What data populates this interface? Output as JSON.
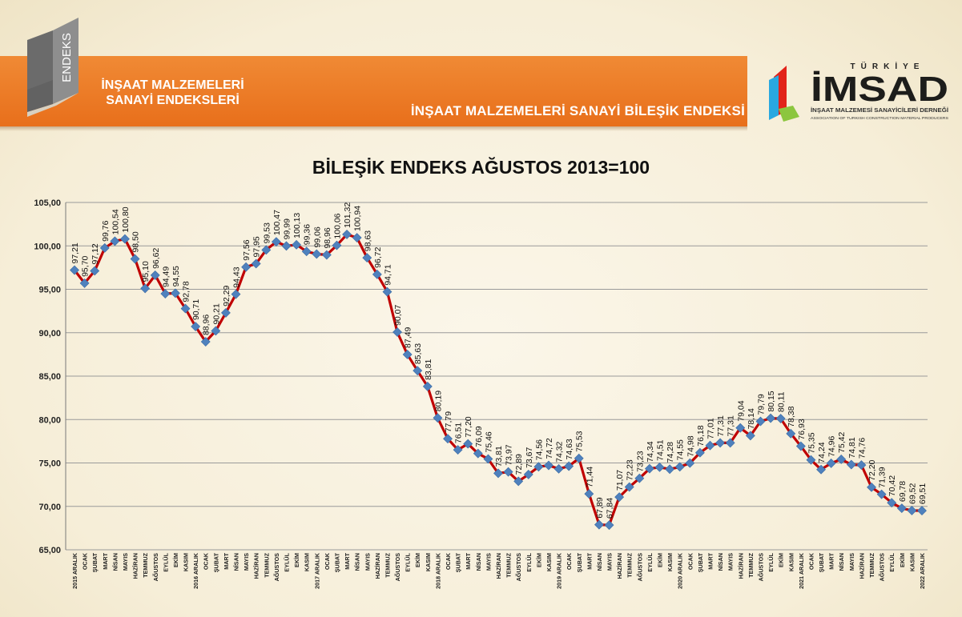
{
  "header": {
    "logo_badge": "ENDEKS",
    "subtitle_line1": "İNŞAAT MALZEMELERİ",
    "subtitle_line2": "SANAYİ ENDEKSLERİ",
    "main_title": "İNŞAAT MALZEMELERİ SANAYİ BİLEŞİK ENDEKSİ"
  },
  "logo": {
    "country": "TÜRKİYE",
    "name": "İMSAD",
    "line1": "İNŞAAT MALZEMESİ SANAYİCİLERİ DERNEĞİ",
    "line2": "ASSOCIATION OF TURKISH CONSTRUCTION MATERIAL PRODUCERS"
  },
  "colors": {
    "banner": "#ee7d2b",
    "line": "#c00000",
    "marker": "#4f81bd"
  },
  "chart_data": {
    "type": "line",
    "title": "BİLEŞİK ENDEKS AĞUSTOS 2013=100",
    "ylim": [
      65,
      105
    ],
    "yticks": [
      "105,00",
      "100,00",
      "95,00",
      "90,00",
      "85,00",
      "80,00",
      "75,00",
      "70,00",
      "65,00"
    ],
    "grid": true,
    "categories": [
      "2015 ARALIK",
      "OCAK",
      "ŞUBAT",
      "MART",
      "NİSAN",
      "MAYIS",
      "HAZİRAN",
      "TEMMUZ",
      "AĞUSTOS",
      "EYLÜL",
      "EKİM",
      "KASIM",
      "2016 ARALIK",
      "OCAK",
      "ŞUBAT",
      "MART",
      "NİSAN",
      "MAYIS",
      "HAZİRAN",
      "TEMMUZ",
      "AĞUSTOS",
      "EYLÜL",
      "EKİM",
      "KASIM",
      "2017 ARALIK",
      "OCAK",
      "ŞUBAT",
      "MART",
      "NİSAN",
      "MAYIS",
      "HAZİRAN",
      "TEMMUZ",
      "AĞUSTOS",
      "EYLÜL",
      "EKİM",
      "KASIM",
      "2018 ARALIK",
      "OCAK",
      "ŞUBAT",
      "MART",
      "NİSAN",
      "MAYIS",
      "HAZİRAN",
      "TEMMUZ",
      "AĞUSTOS",
      "EYLÜL",
      "EKİM",
      "KASIM",
      "2019 ARALIK",
      "OCAK",
      "ŞUBAT",
      "MART",
      "NİSAN",
      "MAYIS",
      "HAZİRAN",
      "TEMMUZ",
      "AĞUSTOS",
      "EYLÜL",
      "EKİM",
      "KASIM",
      "2020 ARALIK",
      "OCAK",
      "ŞUBAT",
      "MART",
      "NİSAN",
      "MAYIS",
      "HAZİRAN",
      "TEMMUZ",
      "AĞUSTOS",
      "EYLÜL",
      "EKİM",
      "KASIM",
      "2021 ARALIK",
      "OCAK",
      "ŞUBAT",
      "MART",
      "NİSAN",
      "MAYIS",
      "HAZİRAN",
      "TEMMUZ",
      "AĞUSTOS",
      "EYLÜL",
      "EKİM",
      "KASIM",
      "2022 ARALIK"
    ],
    "values": [
      97.21,
      95.7,
      97.12,
      99.76,
      100.54,
      100.8,
      98.5,
      95.1,
      96.62,
      94.49,
      94.55,
      92.78,
      90.71,
      88.96,
      90.21,
      92.29,
      94.43,
      97.56,
      97.95,
      99.53,
      100.47,
      99.99,
      100.13,
      99.36,
      99.06,
      98.96,
      100.06,
      101.32,
      100.94,
      98.63,
      96.72,
      94.71,
      90.07,
      87.49,
      85.63,
      83.81,
      80.19,
      77.79,
      76.51,
      77.2,
      76.09,
      75.46,
      73.81,
      73.97,
      72.89,
      73.67,
      74.56,
      74.72,
      74.32,
      74.63,
      75.53,
      71.44,
      67.89,
      67.84,
      71.07,
      72.23,
      73.23,
      74.34,
      74.51,
      74.28,
      74.55,
      74.98,
      76.18,
      77.01,
      77.31,
      77.31,
      79.04,
      78.14,
      79.79,
      80.15,
      80.11,
      78.38,
      76.93,
      75.35,
      74.24,
      74.96,
      75.42,
      74.81,
      74.76,
      72.2,
      71.39,
      70.42,
      69.78,
      69.52,
      69.51
    ],
    "data_labels": [
      "97,21",
      "95,70",
      "97,12",
      "99,76",
      "100,54",
      "100,80",
      "98,50",
      "95,10",
      "96,62",
      "94,49",
      "94,55",
      "92,78",
      "90,71",
      "88,96",
      "90,21",
      "92,29",
      "94,43",
      "97,56",
      "97,95",
      "99,53",
      "100,47",
      "99,99",
      "100,13",
      "99,36",
      "99,06",
      "98,96",
      "100,06",
      "101,32",
      "100,94",
      "98,63",
      "96,72",
      "94,71",
      "90,07",
      "87,49",
      "85,63",
      "83,81",
      "80,19",
      "77,79",
      "76,51",
      "77,20",
      "76,09",
      "75,46",
      "73,81",
      "73,97",
      "72,89",
      "73,67",
      "74,56",
      "74,72",
      "74,32",
      "74,63",
      "75,53",
      "71,44",
      "67,89",
      "67,84",
      "71,07",
      "72,23",
      "73,23",
      "74,34",
      "74,51",
      "74,28",
      "74,55",
      "74,98",
      "76,18",
      "77,01",
      "77,31",
      "77,31",
      "79,04",
      "78,14",
      "79,79",
      "80,15",
      "80,11",
      "78,38",
      "76,93",
      "75,35",
      "74,24",
      "74,96",
      "75,42",
      "74,81",
      "74,76",
      "72,20",
      "71,39",
      "70,42",
      "69,78",
      "69,52",
      "69,51"
    ]
  }
}
